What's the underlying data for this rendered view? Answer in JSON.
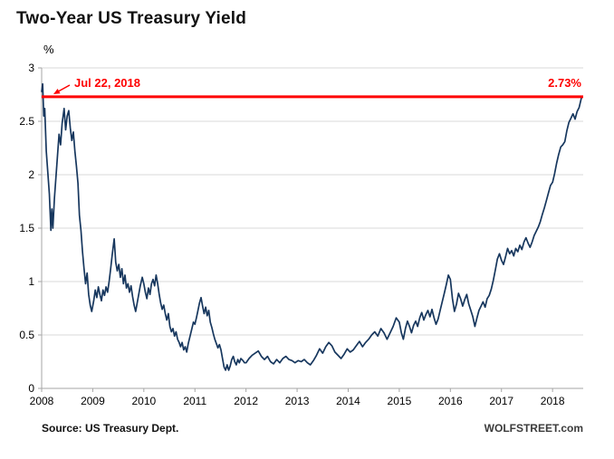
{
  "page": {
    "title": "Two-Year US Treasury Yield",
    "y_unit_label": "%",
    "source": "Source: US Treasury Dept.",
    "watermark": "WOLFSTREET.com"
  },
  "colors": {
    "series": "#17375e",
    "highlight": "#fe0000",
    "grid": "#d9d9d9",
    "axis": "#a6a6a6",
    "text": "#000000"
  },
  "chart_data": {
    "type": "line",
    "title": "Two-Year US Treasury Yield",
    "xlabel": "",
    "ylabel": "%",
    "xlim": [
      2008,
      2018.6
    ],
    "ylim": [
      0,
      3
    ],
    "x_ticks": [
      2008,
      2009,
      2010,
      2011,
      2012,
      2013,
      2014,
      2015,
      2016,
      2017,
      2018
    ],
    "y_ticks": [
      0,
      0.5,
      1,
      1.5,
      2,
      2.5,
      3
    ],
    "y_tick_labels": [
      "0",
      "0.5",
      "1",
      "1.5",
      "2",
      "2.5",
      "3"
    ],
    "grid": "horizontal",
    "legend": "none",
    "reference_line": {
      "value": 2.73,
      "label": "2.73%",
      "date": "Jul 22, 2018"
    },
    "series": [
      {
        "name": "Two-year US Treasury yield (%)",
        "points": [
          [
            2008.0,
            2.78
          ],
          [
            2008.02,
            2.85
          ],
          [
            2008.04,
            2.55
          ],
          [
            2008.06,
            2.62
          ],
          [
            2008.09,
            2.22
          ],
          [
            2008.12,
            2.02
          ],
          [
            2008.15,
            1.82
          ],
          [
            2008.18,
            1.48
          ],
          [
            2008.2,
            1.68
          ],
          [
            2008.22,
            1.5
          ],
          [
            2008.25,
            1.78
          ],
          [
            2008.28,
            1.98
          ],
          [
            2008.31,
            2.18
          ],
          [
            2008.34,
            2.38
          ],
          [
            2008.37,
            2.28
          ],
          [
            2008.4,
            2.48
          ],
          [
            2008.44,
            2.62
          ],
          [
            2008.47,
            2.42
          ],
          [
            2008.5,
            2.55
          ],
          [
            2008.53,
            2.6
          ],
          [
            2008.56,
            2.44
          ],
          [
            2008.59,
            2.32
          ],
          [
            2008.62,
            2.4
          ],
          [
            2008.65,
            2.22
          ],
          [
            2008.68,
            2.08
          ],
          [
            2008.71,
            1.92
          ],
          [
            2008.74,
            1.62
          ],
          [
            2008.77,
            1.48
          ],
          [
            2008.8,
            1.28
          ],
          [
            2008.83,
            1.12
          ],
          [
            2008.86,
            0.98
          ],
          [
            2008.89,
            1.08
          ],
          [
            2008.92,
            0.88
          ],
          [
            2008.95,
            0.78
          ],
          [
            2008.98,
            0.72
          ],
          [
            2009.02,
            0.82
          ],
          [
            2009.05,
            0.92
          ],
          [
            2009.08,
            0.85
          ],
          [
            2009.11,
            0.95
          ],
          [
            2009.14,
            0.88
          ],
          [
            2009.17,
            0.82
          ],
          [
            2009.2,
            0.92
          ],
          [
            2009.23,
            0.87
          ],
          [
            2009.26,
            0.95
          ],
          [
            2009.29,
            0.9
          ],
          [
            2009.32,
            1.0
          ],
          [
            2009.35,
            1.12
          ],
          [
            2009.38,
            1.25
          ],
          [
            2009.42,
            1.4
          ],
          [
            2009.45,
            1.18
          ],
          [
            2009.48,
            1.1
          ],
          [
            2009.51,
            1.16
          ],
          [
            2009.54,
            1.04
          ],
          [
            2009.57,
            1.12
          ],
          [
            2009.6,
            0.98
          ],
          [
            2009.63,
            1.06
          ],
          [
            2009.66,
            0.94
          ],
          [
            2009.69,
            0.98
          ],
          [
            2009.72,
            0.9
          ],
          [
            2009.75,
            0.96
          ],
          [
            2009.78,
            0.86
          ],
          [
            2009.81,
            0.78
          ],
          [
            2009.84,
            0.72
          ],
          [
            2009.87,
            0.8
          ],
          [
            2009.9,
            0.88
          ],
          [
            2009.93,
            0.96
          ],
          [
            2009.97,
            1.04
          ],
          [
            2010.0,
            0.98
          ],
          [
            2010.03,
            0.9
          ],
          [
            2010.06,
            0.84
          ],
          [
            2010.09,
            0.94
          ],
          [
            2010.12,
            0.88
          ],
          [
            2010.15,
            0.98
          ],
          [
            2010.18,
            1.02
          ],
          [
            2010.21,
            0.96
          ],
          [
            2010.24,
            1.06
          ],
          [
            2010.27,
            0.98
          ],
          [
            2010.3,
            0.88
          ],
          [
            2010.33,
            0.8
          ],
          [
            2010.36,
            0.74
          ],
          [
            2010.39,
            0.78
          ],
          [
            2010.42,
            0.7
          ],
          [
            2010.45,
            0.64
          ],
          [
            2010.48,
            0.7
          ],
          [
            2010.51,
            0.58
          ],
          [
            2010.54,
            0.53
          ],
          [
            2010.57,
            0.56
          ],
          [
            2010.6,
            0.49
          ],
          [
            2010.63,
            0.53
          ],
          [
            2010.66,
            0.46
          ],
          [
            2010.69,
            0.43
          ],
          [
            2010.72,
            0.39
          ],
          [
            2010.75,
            0.43
          ],
          [
            2010.78,
            0.36
          ],
          [
            2010.81,
            0.39
          ],
          [
            2010.84,
            0.34
          ],
          [
            2010.87,
            0.42
          ],
          [
            2010.9,
            0.48
          ],
          [
            2010.94,
            0.56
          ],
          [
            2010.97,
            0.62
          ],
          [
            2011.0,
            0.6
          ],
          [
            2011.03,
            0.66
          ],
          [
            2011.06,
            0.73
          ],
          [
            2011.09,
            0.8
          ],
          [
            2011.12,
            0.85
          ],
          [
            2011.15,
            0.77
          ],
          [
            2011.18,
            0.7
          ],
          [
            2011.21,
            0.76
          ],
          [
            2011.24,
            0.68
          ],
          [
            2011.27,
            0.73
          ],
          [
            2011.3,
            0.62
          ],
          [
            2011.33,
            0.57
          ],
          [
            2011.36,
            0.51
          ],
          [
            2011.39,
            0.46
          ],
          [
            2011.42,
            0.42
          ],
          [
            2011.45,
            0.38
          ],
          [
            2011.48,
            0.41
          ],
          [
            2011.51,
            0.36
          ],
          [
            2011.54,
            0.28
          ],
          [
            2011.57,
            0.2
          ],
          [
            2011.6,
            0.17
          ],
          [
            2011.63,
            0.22
          ],
          [
            2011.66,
            0.17
          ],
          [
            2011.69,
            0.21
          ],
          [
            2011.72,
            0.27
          ],
          [
            2011.75,
            0.3
          ],
          [
            2011.78,
            0.25
          ],
          [
            2011.81,
            0.22
          ],
          [
            2011.84,
            0.27
          ],
          [
            2011.87,
            0.24
          ],
          [
            2011.9,
            0.28
          ],
          [
            2011.94,
            0.26
          ],
          [
            2011.97,
            0.24
          ],
          [
            2012.0,
            0.24
          ],
          [
            2012.06,
            0.28
          ],
          [
            2012.12,
            0.31
          ],
          [
            2012.18,
            0.33
          ],
          [
            2012.24,
            0.35
          ],
          [
            2012.3,
            0.3
          ],
          [
            2012.36,
            0.27
          ],
          [
            2012.42,
            0.3
          ],
          [
            2012.48,
            0.25
          ],
          [
            2012.54,
            0.23
          ],
          [
            2012.6,
            0.27
          ],
          [
            2012.66,
            0.24
          ],
          [
            2012.72,
            0.28
          ],
          [
            2012.78,
            0.3
          ],
          [
            2012.84,
            0.27
          ],
          [
            2012.9,
            0.26
          ],
          [
            2012.96,
            0.24
          ],
          [
            2013.02,
            0.26
          ],
          [
            2013.08,
            0.25
          ],
          [
            2013.14,
            0.27
          ],
          [
            2013.2,
            0.24
          ],
          [
            2013.26,
            0.22
          ],
          [
            2013.32,
            0.26
          ],
          [
            2013.38,
            0.31
          ],
          [
            2013.44,
            0.37
          ],
          [
            2013.5,
            0.33
          ],
          [
            2013.56,
            0.39
          ],
          [
            2013.62,
            0.43
          ],
          [
            2013.68,
            0.4
          ],
          [
            2013.74,
            0.34
          ],
          [
            2013.8,
            0.31
          ],
          [
            2013.86,
            0.28
          ],
          [
            2013.92,
            0.32
          ],
          [
            2013.98,
            0.37
          ],
          [
            2014.04,
            0.34
          ],
          [
            2014.1,
            0.36
          ],
          [
            2014.16,
            0.4
          ],
          [
            2014.22,
            0.44
          ],
          [
            2014.28,
            0.39
          ],
          [
            2014.34,
            0.43
          ],
          [
            2014.4,
            0.46
          ],
          [
            2014.46,
            0.5
          ],
          [
            2014.52,
            0.53
          ],
          [
            2014.58,
            0.49
          ],
          [
            2014.64,
            0.56
          ],
          [
            2014.7,
            0.52
          ],
          [
            2014.76,
            0.46
          ],
          [
            2014.82,
            0.52
          ],
          [
            2014.88,
            0.58
          ],
          [
            2014.94,
            0.66
          ],
          [
            2015.0,
            0.62
          ],
          [
            2015.04,
            0.52
          ],
          [
            2015.08,
            0.46
          ],
          [
            2015.12,
            0.56
          ],
          [
            2015.16,
            0.63
          ],
          [
            2015.2,
            0.58
          ],
          [
            2015.24,
            0.52
          ],
          [
            2015.28,
            0.59
          ],
          [
            2015.32,
            0.63
          ],
          [
            2015.36,
            0.58
          ],
          [
            2015.4,
            0.66
          ],
          [
            2015.44,
            0.71
          ],
          [
            2015.48,
            0.64
          ],
          [
            2015.52,
            0.69
          ],
          [
            2015.56,
            0.73
          ],
          [
            2015.6,
            0.67
          ],
          [
            2015.64,
            0.74
          ],
          [
            2015.68,
            0.66
          ],
          [
            2015.72,
            0.6
          ],
          [
            2015.76,
            0.65
          ],
          [
            2015.8,
            0.73
          ],
          [
            2015.84,
            0.81
          ],
          [
            2015.88,
            0.89
          ],
          [
            2015.92,
            0.97
          ],
          [
            2015.96,
            1.06
          ],
          [
            2016.0,
            1.02
          ],
          [
            2016.04,
            0.84
          ],
          [
            2016.08,
            0.72
          ],
          [
            2016.12,
            0.79
          ],
          [
            2016.16,
            0.89
          ],
          [
            2016.2,
            0.84
          ],
          [
            2016.24,
            0.77
          ],
          [
            2016.28,
            0.83
          ],
          [
            2016.32,
            0.88
          ],
          [
            2016.36,
            0.79
          ],
          [
            2016.4,
            0.73
          ],
          [
            2016.44,
            0.67
          ],
          [
            2016.48,
            0.58
          ],
          [
            2016.52,
            0.66
          ],
          [
            2016.56,
            0.73
          ],
          [
            2016.6,
            0.77
          ],
          [
            2016.64,
            0.81
          ],
          [
            2016.68,
            0.76
          ],
          [
            2016.72,
            0.84
          ],
          [
            2016.76,
            0.87
          ],
          [
            2016.8,
            0.93
          ],
          [
            2016.84,
            1.01
          ],
          [
            2016.88,
            1.11
          ],
          [
            2016.92,
            1.21
          ],
          [
            2016.96,
            1.26
          ],
          [
            2017.0,
            1.2
          ],
          [
            2017.04,
            1.16
          ],
          [
            2017.08,
            1.23
          ],
          [
            2017.12,
            1.31
          ],
          [
            2017.16,
            1.26
          ],
          [
            2017.2,
            1.29
          ],
          [
            2017.24,
            1.24
          ],
          [
            2017.28,
            1.31
          ],
          [
            2017.32,
            1.28
          ],
          [
            2017.36,
            1.34
          ],
          [
            2017.4,
            1.3
          ],
          [
            2017.44,
            1.37
          ],
          [
            2017.48,
            1.41
          ],
          [
            2017.52,
            1.36
          ],
          [
            2017.56,
            1.32
          ],
          [
            2017.6,
            1.37
          ],
          [
            2017.64,
            1.43
          ],
          [
            2017.68,
            1.47
          ],
          [
            2017.72,
            1.51
          ],
          [
            2017.76,
            1.56
          ],
          [
            2017.8,
            1.63
          ],
          [
            2017.84,
            1.69
          ],
          [
            2017.88,
            1.76
          ],
          [
            2017.92,
            1.83
          ],
          [
            2017.96,
            1.9
          ],
          [
            2018.0,
            1.93
          ],
          [
            2018.04,
            2.01
          ],
          [
            2018.08,
            2.11
          ],
          [
            2018.12,
            2.19
          ],
          [
            2018.16,
            2.26
          ],
          [
            2018.2,
            2.28
          ],
          [
            2018.24,
            2.31
          ],
          [
            2018.28,
            2.41
          ],
          [
            2018.32,
            2.49
          ],
          [
            2018.36,
            2.53
          ],
          [
            2018.4,
            2.57
          ],
          [
            2018.44,
            2.52
          ],
          [
            2018.48,
            2.59
          ],
          [
            2018.52,
            2.63
          ],
          [
            2018.55,
            2.69
          ],
          [
            2018.57,
            2.73
          ]
        ]
      }
    ]
  }
}
